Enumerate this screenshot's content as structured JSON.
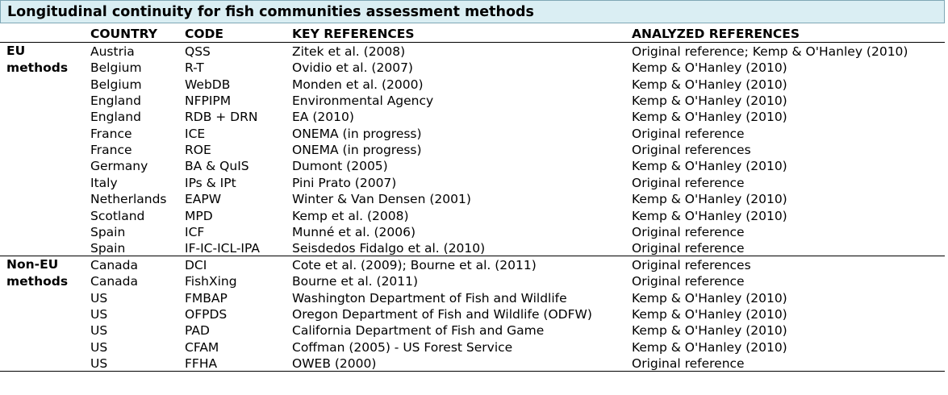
{
  "title": "Longitudinal continuity for fish communities assessment methods",
  "headers": [
    "COUNTRY",
    "CODE",
    "KEY REFERENCES",
    "ANALYZED REFERENCES"
  ],
  "groups": [
    {
      "label_line1": "EU",
      "label_line2": "methods",
      "rows": [
        [
          "Austria",
          "QSS",
          "Zitek et al. (2008)",
          "Original reference; Kemp & O'Hanley (2010)"
        ],
        [
          "Belgium",
          "R-T",
          "Ovidio et al. (2007)",
          "Kemp & O'Hanley (2010)"
        ],
        [
          "Belgium",
          "WebDB",
          "Monden et al. (2000)",
          "Kemp & O'Hanley (2010)"
        ],
        [
          "England",
          "NFPIPM",
          "Environmental Agency",
          "Kemp & O'Hanley (2010)"
        ],
        [
          "England",
          "RDB + DRN",
          "EA (2010)",
          "Kemp & O'Hanley (2010)"
        ],
        [
          "France",
          "ICE",
          "ONEMA (in progress)",
          "Original reference"
        ],
        [
          "France",
          "ROE",
          "ONEMA (in progress)",
          "Original references"
        ],
        [
          "Germany",
          "BA & QuIS",
          "Dumont (2005)",
          "Kemp & O'Hanley (2010)"
        ],
        [
          "Italy",
          "IPs & IPt",
          "Pini Prato (2007)",
          "Original reference"
        ],
        [
          "Netherlands",
          "EAPW",
          "Winter & Van Densen (2001)",
          "Kemp & O'Hanley (2010)"
        ],
        [
          "Scotland",
          "MPD",
          "Kemp et al. (2008)",
          "Kemp & O'Hanley (2010)"
        ],
        [
          "Spain",
          "ICF",
          "Munné et al. (2006)",
          "Original reference"
        ],
        [
          "Spain",
          "IF-IC-ICL-IPA",
          "Seisdedos Fidalgo et al. (2010)",
          "Original reference"
        ]
      ]
    },
    {
      "label_line1": "Non-EU",
      "label_line2": "methods",
      "rows": [
        [
          "Canada",
          "DCI",
          "Cote et al. (2009); Bourne et al. (2011)",
          "Original references"
        ],
        [
          "Canada",
          "FishXing",
          "Bourne et al. (2011)",
          "Original reference"
        ],
        [
          "US",
          "FMBAP",
          "Washington Department of Fish and Wildlife",
          "Kemp & O'Hanley (2010)"
        ],
        [
          "US",
          "OFPDS",
          "Oregon Department of Fish and Wildlife (ODFW)",
          "Kemp & O'Hanley (2010)"
        ],
        [
          "US",
          "PAD",
          "California Department of Fish and Game",
          "Kemp & O'Hanley (2010)"
        ],
        [
          "US",
          "CFAM",
          "Coffman (2005) - US Forest Service",
          "Kemp & O'Hanley (2010)"
        ],
        [
          "US",
          "FFHA",
          "OWEB (2000)",
          "Original reference"
        ]
      ]
    }
  ]
}
